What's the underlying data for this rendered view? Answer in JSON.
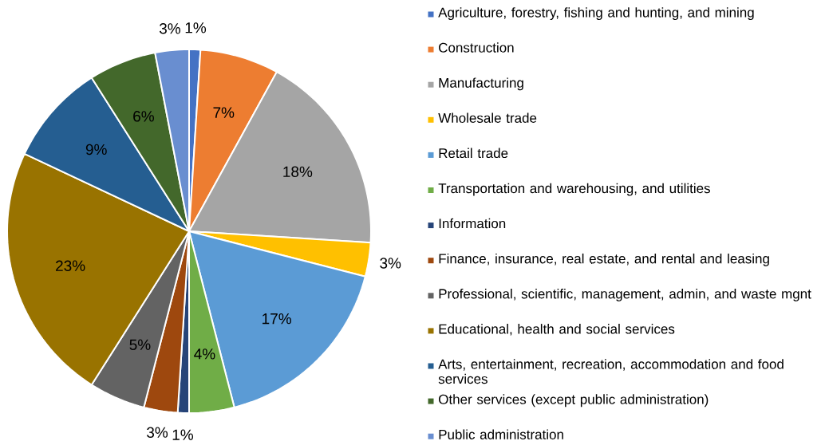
{
  "chart_data": {
    "type": "pie",
    "categories": [
      "Agriculture, forestry, fishing and hunting, and mining",
      "Construction",
      "Manufacturing",
      "Wholesale trade",
      "Retail trade",
      "Transportation and warehousing, and utilities",
      "Information",
      "Finance, insurance, real estate, and rental and leasing",
      "Professional, scientific, management, admin, and waste mgnt",
      "Educational, health and social services",
      "Arts, entertainment, recreation, accommodation and food services",
      "Other services (except public administration)",
      "Public administration"
    ],
    "values": [
      1,
      7,
      18,
      3,
      17,
      4,
      1,
      3,
      5,
      23,
      9,
      6,
      3
    ],
    "value_labels": [
      "1%",
      "7%",
      "18%",
      "3%",
      "17%",
      "4%",
      "1%",
      "3%",
      "5%",
      "23%",
      "9%",
      "6%",
      "3%"
    ],
    "colors": [
      "#4472c4",
      "#ed7d31",
      "#a5a5a5",
      "#ffc000",
      "#5b9bd5",
      "#70ad47",
      "#264478",
      "#9e480e",
      "#636363",
      "#997300",
      "#255e91",
      "#43682b",
      "#698ed0"
    ],
    "legend": "right"
  }
}
